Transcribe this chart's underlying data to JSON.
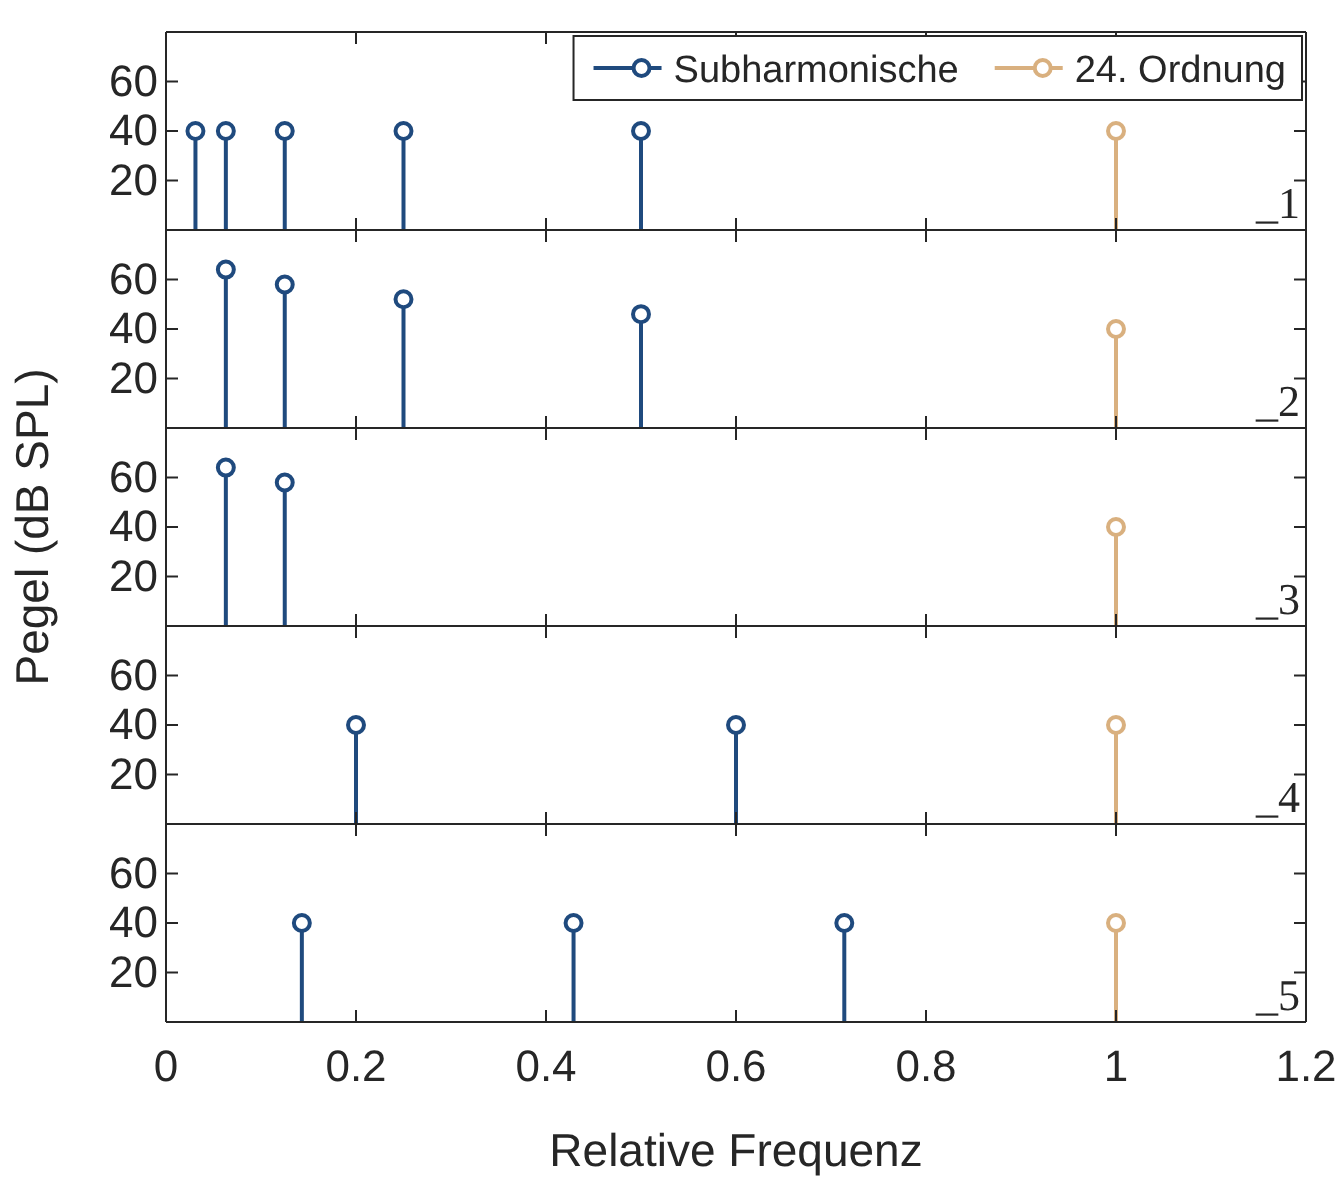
{
  "chart_data": [
    {
      "type": "lollipop",
      "xlim": [
        0,
        1.2
      ],
      "xticks": [
        0,
        0.2,
        0.4,
        0.6,
        0.8,
        1,
        1.2
      ],
      "ylim": [
        0,
        80
      ],
      "yticks": [
        20,
        40,
        60
      ],
      "tick_labels": "y",
      "marker": "circle",
      "legend": "top right",
      "annotations": [
        "_1"
      ],
      "series": [
        {
          "name": "Subharmonische",
          "color": "#1f4a7e",
          "x": [
            0.031,
            0.063,
            0.125,
            0.25,
            0.5
          ],
          "values": [
            40,
            40,
            40,
            40,
            40
          ]
        },
        {
          "name": "24. Ordnung",
          "color": "#d9b07f",
          "x": [
            1
          ],
          "values": [
            40
          ]
        }
      ]
    },
    {
      "type": "lollipop",
      "xlim": [
        0,
        1.2
      ],
      "xticks": [
        0,
        0.2,
        0.4,
        0.6,
        0.8,
        1,
        1.2
      ],
      "ylim": [
        0,
        80
      ],
      "yticks": [
        20,
        40,
        60
      ],
      "tick_labels": "y",
      "marker": "circle",
      "annotations": [
        "_2"
      ],
      "series": [
        {
          "color": "#1f4a7e",
          "x": [
            0.063,
            0.125,
            0.25,
            0.5
          ],
          "values": [
            64,
            58,
            52,
            46
          ]
        },
        {
          "color": "#d9b07f",
          "x": [
            1
          ],
          "values": [
            40
          ]
        }
      ]
    },
    {
      "type": "lollipop",
      "xlim": [
        0,
        1.2
      ],
      "xticks": [
        0,
        0.2,
        0.4,
        0.6,
        0.8,
        1,
        1.2
      ],
      "ylim": [
        0,
        80
      ],
      "yticks": [
        20,
        40,
        60
      ],
      "tick_labels": "y",
      "marker": "circle",
      "ylabel": "Pegel (dB SPL)",
      "annotations": [
        "_3"
      ],
      "series": [
        {
          "color": "#1f4a7e",
          "x": [
            0.063,
            0.125
          ],
          "values": [
            64,
            58
          ]
        },
        {
          "color": "#d9b07f",
          "x": [
            1
          ],
          "values": [
            40
          ]
        }
      ]
    },
    {
      "type": "lollipop",
      "xlim": [
        0,
        1.2
      ],
      "xticks": [
        0,
        0.2,
        0.4,
        0.6,
        0.8,
        1,
        1.2
      ],
      "ylim": [
        0,
        80
      ],
      "yticks": [
        20,
        40,
        60
      ],
      "tick_labels": "y",
      "marker": "circle",
      "annotations": [
        "_4"
      ],
      "series": [
        {
          "color": "#1f4a7e",
          "x": [
            0.2,
            0.6
          ],
          "values": [
            40,
            40
          ]
        },
        {
          "color": "#d9b07f",
          "x": [
            1
          ],
          "values": [
            40
          ]
        }
      ]
    },
    {
      "type": "lollipop",
      "xlim": [
        0,
        1.2
      ],
      "xticks": [
        0,
        0.2,
        0.4,
        0.6,
        0.8,
        1,
        1.2
      ],
      "ylim": [
        0,
        80
      ],
      "yticks": [
        20,
        40,
        60
      ],
      "marker": "circle",
      "xlabel": "Relative Frequenz",
      "annotations": [
        "_5"
      ],
      "series": [
        {
          "color": "#1f4a7e",
          "x": [
            0.143,
            0.429,
            0.714
          ],
          "values": [
            40,
            40,
            40
          ]
        },
        {
          "color": "#d9b07f",
          "x": [
            1
          ],
          "values": [
            40
          ]
        }
      ]
    }
  ]
}
